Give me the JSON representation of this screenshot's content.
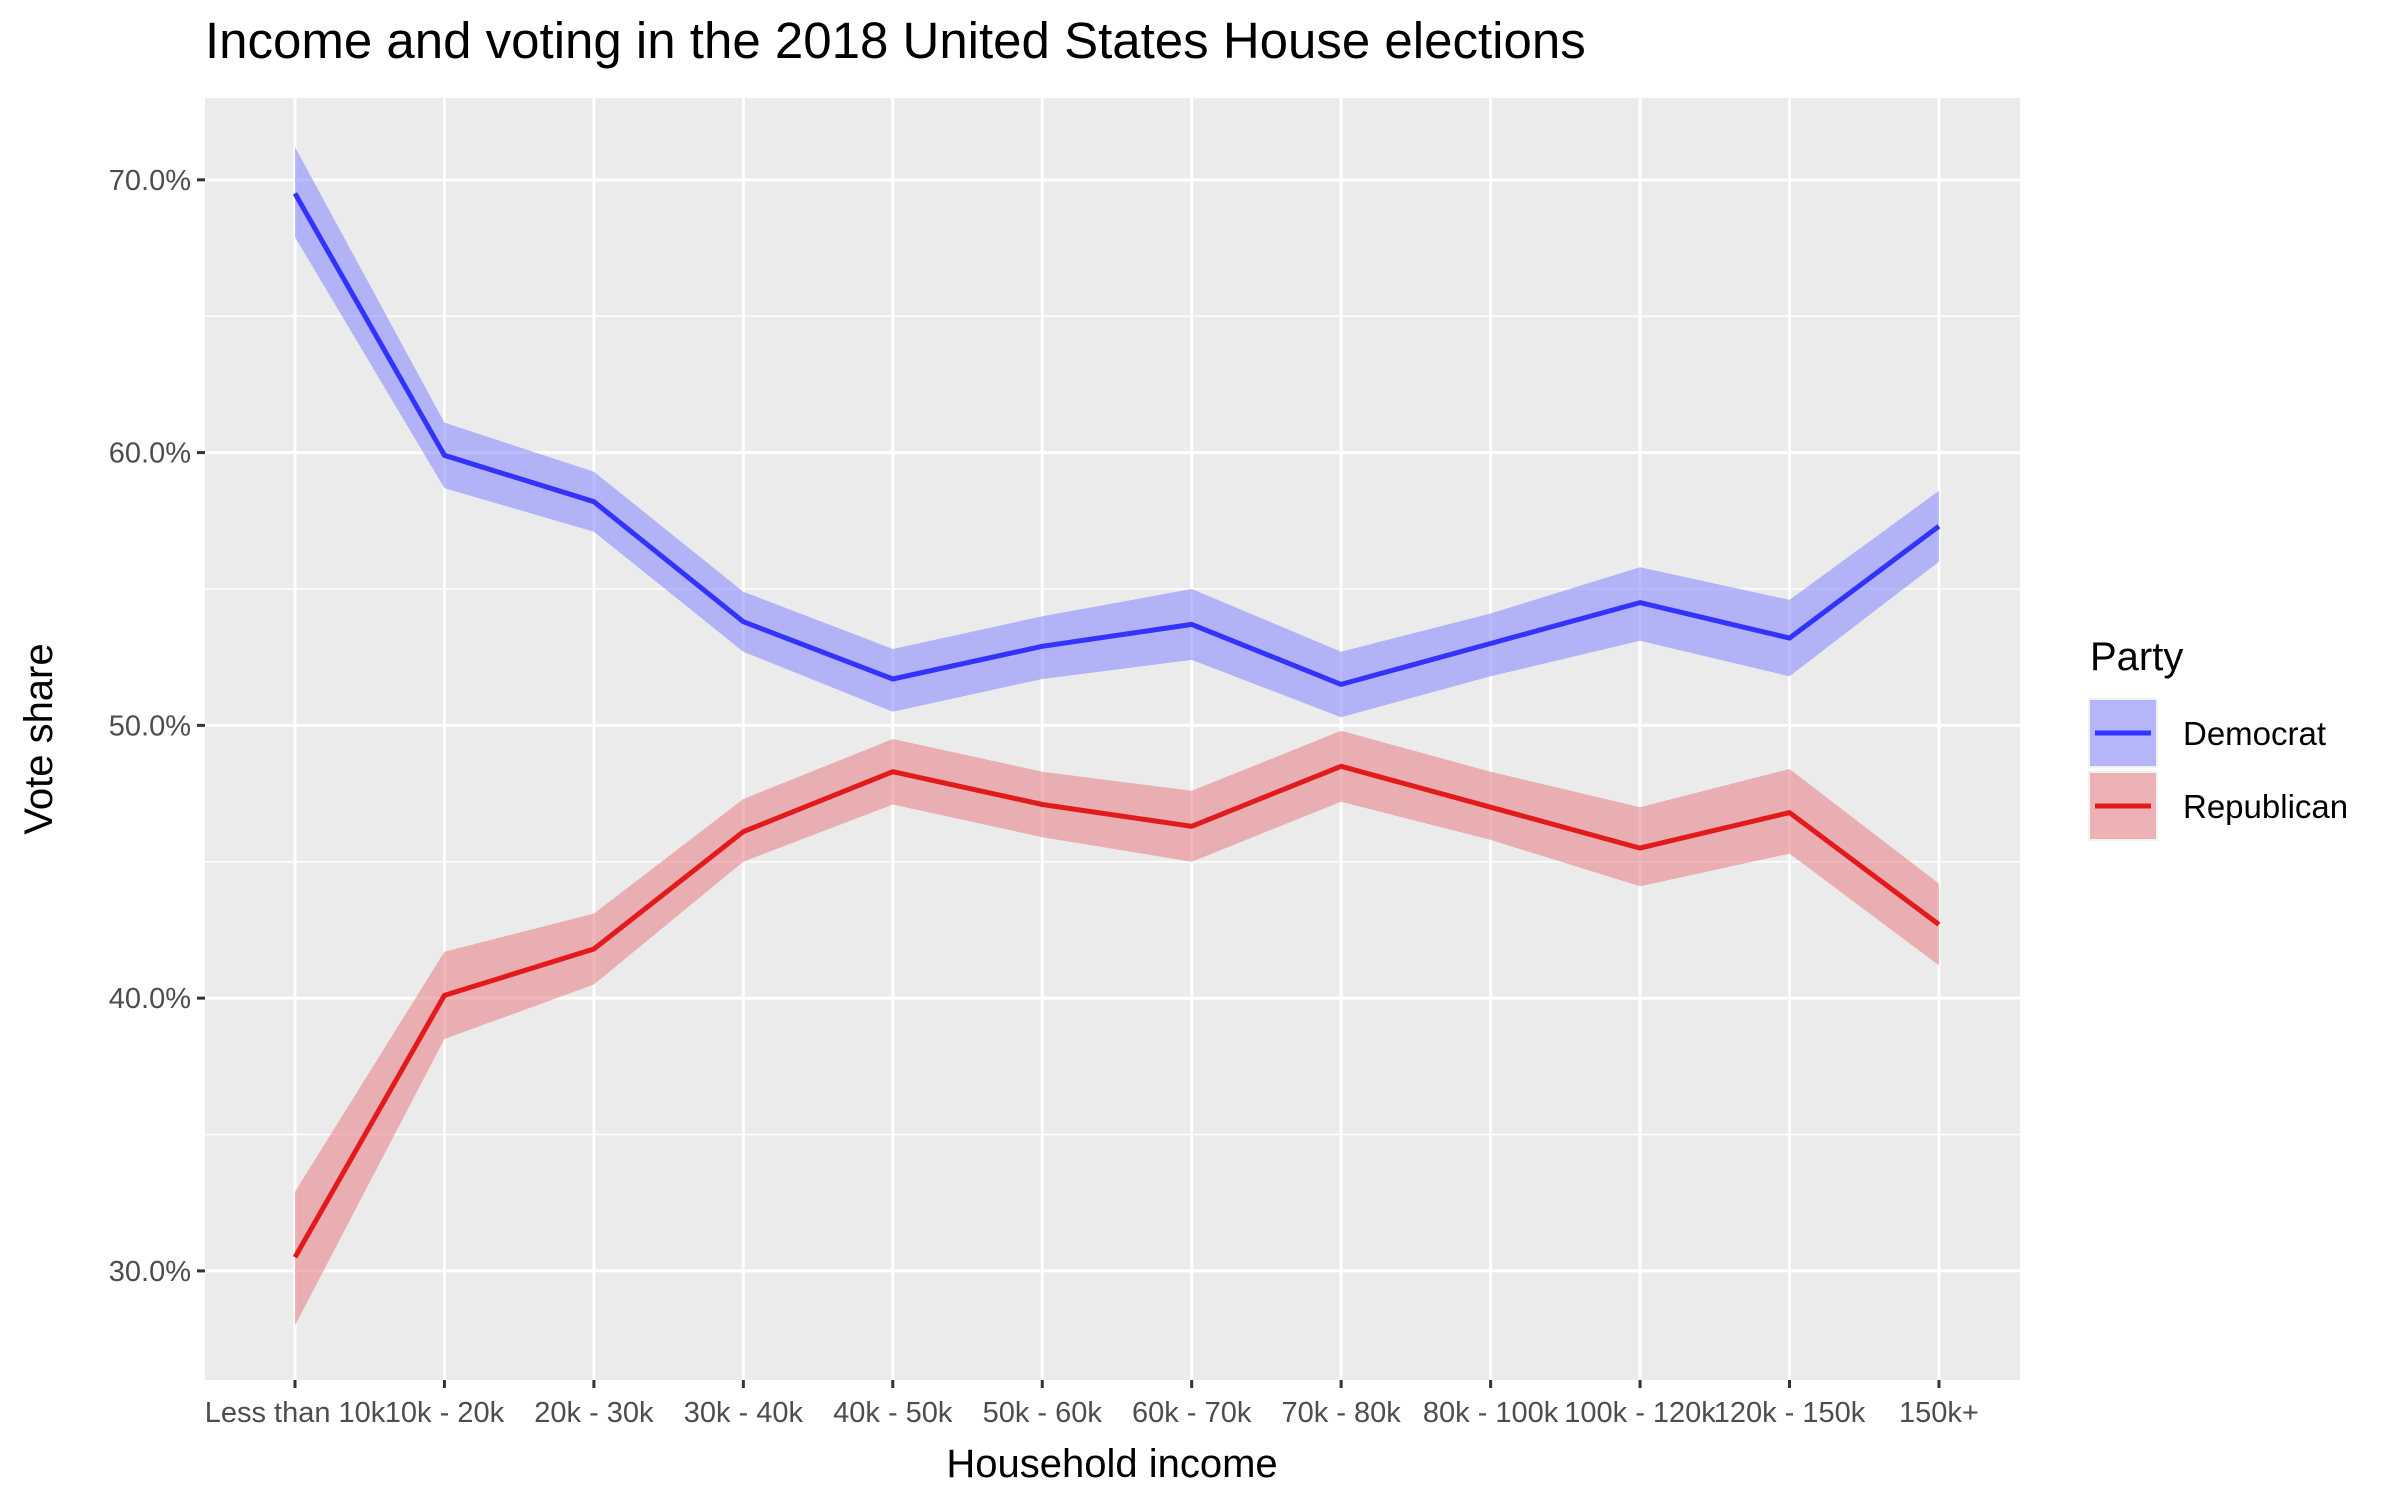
{
  "chart_data": {
    "type": "line",
    "title": "Income and voting in the 2018 United States House elections",
    "xlabel": "Household income",
    "ylabel": "Vote share",
    "categories": [
      "Less than 10k",
      "10k - 20k",
      "20k - 30k",
      "30k - 40k",
      "40k - 50k",
      "50k - 60k",
      "60k - 70k",
      "70k - 80k",
      "80k - 100k",
      "100k - 120k",
      "120k - 150k",
      "150k+"
    ],
    "y_ticks": [
      "30.0%",
      "40.0%",
      "50.0%",
      "60.0%",
      "70.0%"
    ],
    "y_tick_values": [
      30,
      40,
      50,
      60,
      70
    ],
    "ylim": [
      26,
      73
    ],
    "grid": true,
    "legend": {
      "title": "Party",
      "position": "right"
    },
    "series": [
      {
        "name": "Democrat",
        "color": "#3333ff",
        "band_color": "#8c8cff",
        "values": [
          69.5,
          59.9,
          58.2,
          53.8,
          51.7,
          52.9,
          53.7,
          51.5,
          53.0,
          54.5,
          53.2,
          57.3
        ],
        "lower": [
          67.9,
          58.7,
          57.1,
          52.7,
          50.5,
          51.7,
          52.4,
          50.3,
          51.8,
          53.1,
          51.8,
          56.0
        ],
        "upper": [
          71.2,
          61.1,
          59.3,
          54.9,
          52.8,
          54.0,
          55.0,
          52.7,
          54.1,
          55.8,
          54.6,
          58.6
        ]
      },
      {
        "name": "Republican",
        "color": "#e31a1c",
        "band_color": "#e8868a",
        "values": [
          30.5,
          40.1,
          41.8,
          46.1,
          48.3,
          47.1,
          46.3,
          48.5,
          47.0,
          45.5,
          46.8,
          42.7
        ],
        "lower": [
          28.0,
          38.5,
          40.5,
          45.0,
          47.1,
          45.9,
          45.0,
          47.2,
          45.8,
          44.1,
          45.3,
          41.2
        ],
        "upper": [
          32.9,
          41.7,
          43.1,
          47.3,
          49.5,
          48.3,
          47.6,
          49.8,
          48.3,
          47.0,
          48.4,
          44.2
        ]
      }
    ]
  }
}
